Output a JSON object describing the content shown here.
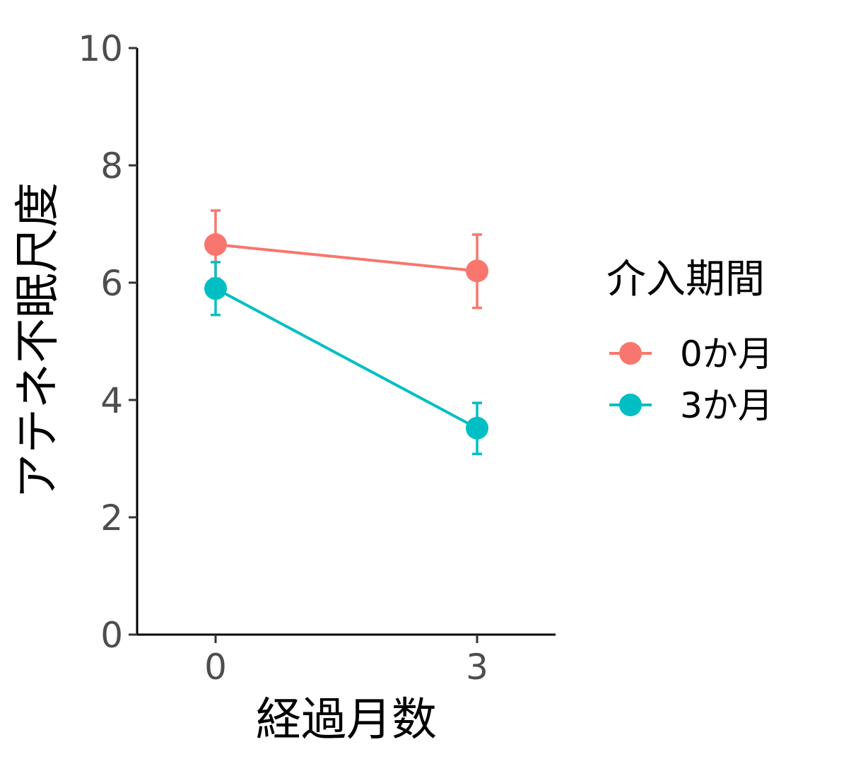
{
  "chart_data": {
    "type": "line",
    "title": "",
    "xlabel": "経過月数",
    "ylabel": "アテネ不眠尺度",
    "x": [
      0,
      3
    ],
    "x_tick_labels": [
      "0",
      "3"
    ],
    "xlim": [
      -0.9,
      3.9
    ],
    "ylim": [
      0,
      10
    ],
    "y_ticks": [
      0,
      2,
      4,
      6,
      8,
      10
    ],
    "y_tick_labels": [
      "0",
      "2",
      "4",
      "6",
      "8",
      "10"
    ],
    "grid": false,
    "legend": {
      "title": "介入期間",
      "position": "right"
    },
    "series": [
      {
        "name": "0か月",
        "color": "#F8766D",
        "values": [
          6.65,
          6.2
        ],
        "error_low": [
          6.07,
          5.57
        ],
        "error_high": [
          7.23,
          6.82
        ]
      },
      {
        "name": "3か月",
        "color": "#00BFC4",
        "values": [
          5.9,
          3.52
        ],
        "error_low": [
          5.45,
          3.08
        ],
        "error_high": [
          6.35,
          3.95
        ]
      }
    ]
  }
}
